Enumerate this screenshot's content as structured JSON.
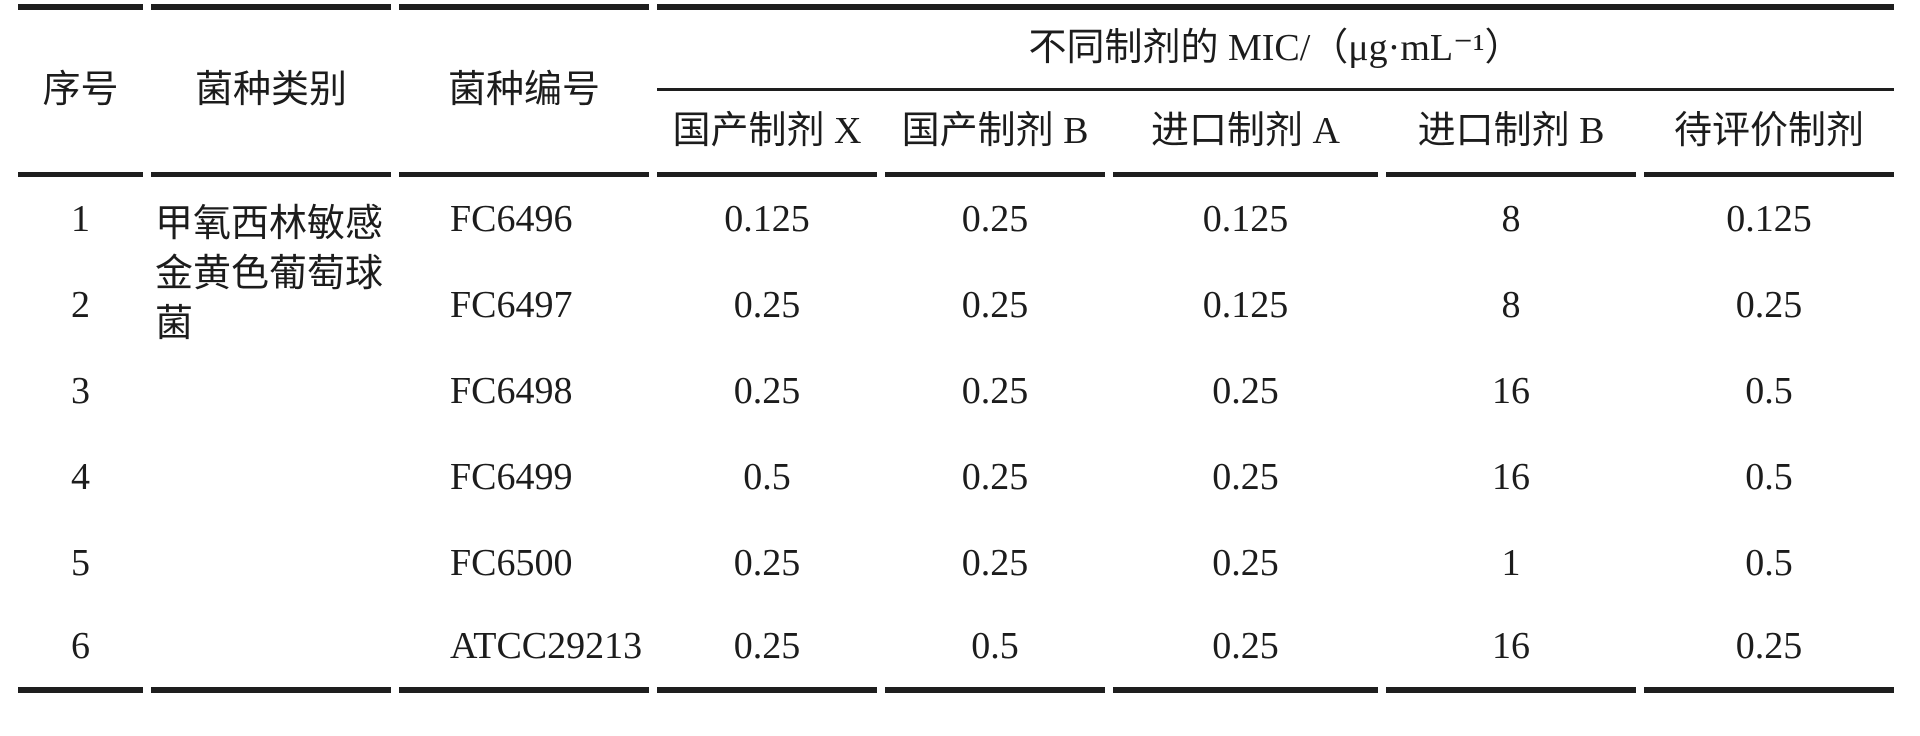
{
  "table": {
    "headers": {
      "col_no": "序号",
      "col_category": "菌种类别",
      "col_strain_id": "菌种编号",
      "mic_group": "不同制剂的 MIC/（μg·mL⁻¹）",
      "sub_columns": [
        "国产制剂 X",
        "国产制剂 B",
        "进口制剂 A",
        "进口制剂 B",
        "待评价制剂"
      ]
    },
    "category_label": "甲氧西林敏感金黄色葡萄球菌",
    "rows": [
      {
        "no": "1",
        "strain_id": "FC6496",
        "values": [
          "0.125",
          "0.25",
          "0.125",
          "8",
          "0.125"
        ]
      },
      {
        "no": "2",
        "strain_id": "FC6497",
        "values": [
          "0.25",
          "0.25",
          "0.125",
          "8",
          "0.25"
        ]
      },
      {
        "no": "3",
        "strain_id": "FC6498",
        "values": [
          "0.25",
          "0.25",
          "0.25",
          "16",
          "0.5"
        ]
      },
      {
        "no": "4",
        "strain_id": "FC6499",
        "values": [
          "0.5",
          "0.25",
          "0.25",
          "16",
          "0.5"
        ]
      },
      {
        "no": "5",
        "strain_id": "FC6500",
        "values": [
          "0.25",
          "0.25",
          "0.25",
          "1",
          "0.5"
        ]
      },
      {
        "no": "6",
        "strain_id": "ATCC29213",
        "values": [
          "0.25",
          "0.5",
          "0.25",
          "16",
          "0.25"
        ]
      }
    ]
  },
  "chart_data": {
    "type": "table",
    "title": "不同制剂的 MIC/（μg·mL⁻¹）",
    "columns": [
      "序号",
      "菌种类别",
      "菌种编号",
      "国产制剂 X",
      "国产制剂 B",
      "进口制剂 A",
      "进口制剂 B",
      "待评价制剂"
    ],
    "rows": [
      [
        "1",
        "甲氧西林敏感金黄色葡萄球菌",
        "FC6496",
        0.125,
        0.25,
        0.125,
        8,
        0.125
      ],
      [
        "2",
        "",
        "FC6497",
        0.25,
        0.25,
        0.125,
        8,
        0.25
      ],
      [
        "3",
        "",
        "FC6498",
        0.25,
        0.25,
        0.25,
        16,
        0.5
      ],
      [
        "4",
        "",
        "FC6499",
        0.5,
        0.25,
        0.25,
        16,
        0.5
      ],
      [
        "5",
        "",
        "FC6500",
        0.25,
        0.25,
        0.25,
        1,
        0.5
      ],
      [
        "6",
        "",
        "ATCC29213",
        0.25,
        0.5,
        0.25,
        16,
        0.25
      ]
    ],
    "colors": {
      "text": "#1c1c1c",
      "rule": "#1e1e1e",
      "background": "#ffffff"
    }
  }
}
